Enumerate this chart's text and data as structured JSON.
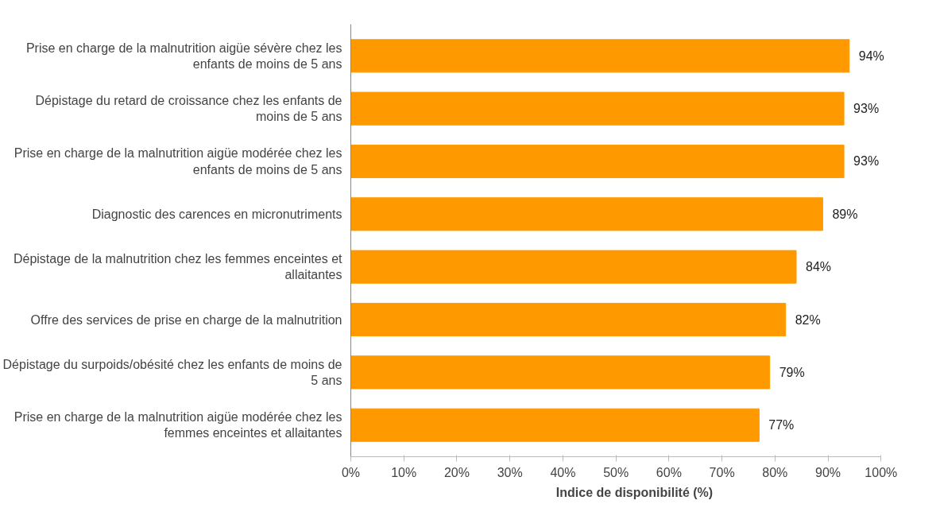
{
  "chart_data": {
    "type": "bar",
    "orientation": "horizontal",
    "xlabel": "Indice de disponibilité (%)",
    "categories": [
      "Prise en charge de la malnutrition aigüe sévère chez les enfants de moins de 5 ans",
      "Dépistage du retard de croissance chez les enfants de moins de 5 ans",
      "Prise en charge de la malnutrition aigüe modérée chez les enfants de moins de 5 ans",
      "Diagnostic des carences en micronutriments",
      "Dépistage de la malnutrition chez les femmes enceintes et allaitantes",
      "Offre des services de prise en charge de la malnutrition",
      "Dépistage du surpoids/obésité chez les enfants de moins de 5 ans",
      "Prise en charge de la malnutrition aigüe modérée chez les femmes enceintes et allaitantes"
    ],
    "values": [
      94,
      93,
      93,
      89,
      84,
      82,
      79,
      77
    ],
    "value_labels": [
      "94%",
      "93%",
      "93%",
      "89%",
      "84%",
      "82%",
      "79%",
      "77%"
    ],
    "color": "#ff9900",
    "xlim": [
      0,
      100
    ],
    "xticks": [
      {
        "value": 0,
        "label": "0%"
      },
      {
        "value": 10,
        "label": "10%"
      },
      {
        "value": 20,
        "label": "20%"
      },
      {
        "value": 30,
        "label": "30%"
      },
      {
        "value": 40,
        "label": "40%"
      },
      {
        "value": 50,
        "label": "50%"
      },
      {
        "value": 60,
        "label": "60%"
      },
      {
        "value": 70,
        "label": "70%"
      },
      {
        "value": 80,
        "label": "80%"
      },
      {
        "value": 90,
        "label": "90%"
      },
      {
        "value": 100,
        "label": "100%"
      }
    ],
    "grid": false
  }
}
